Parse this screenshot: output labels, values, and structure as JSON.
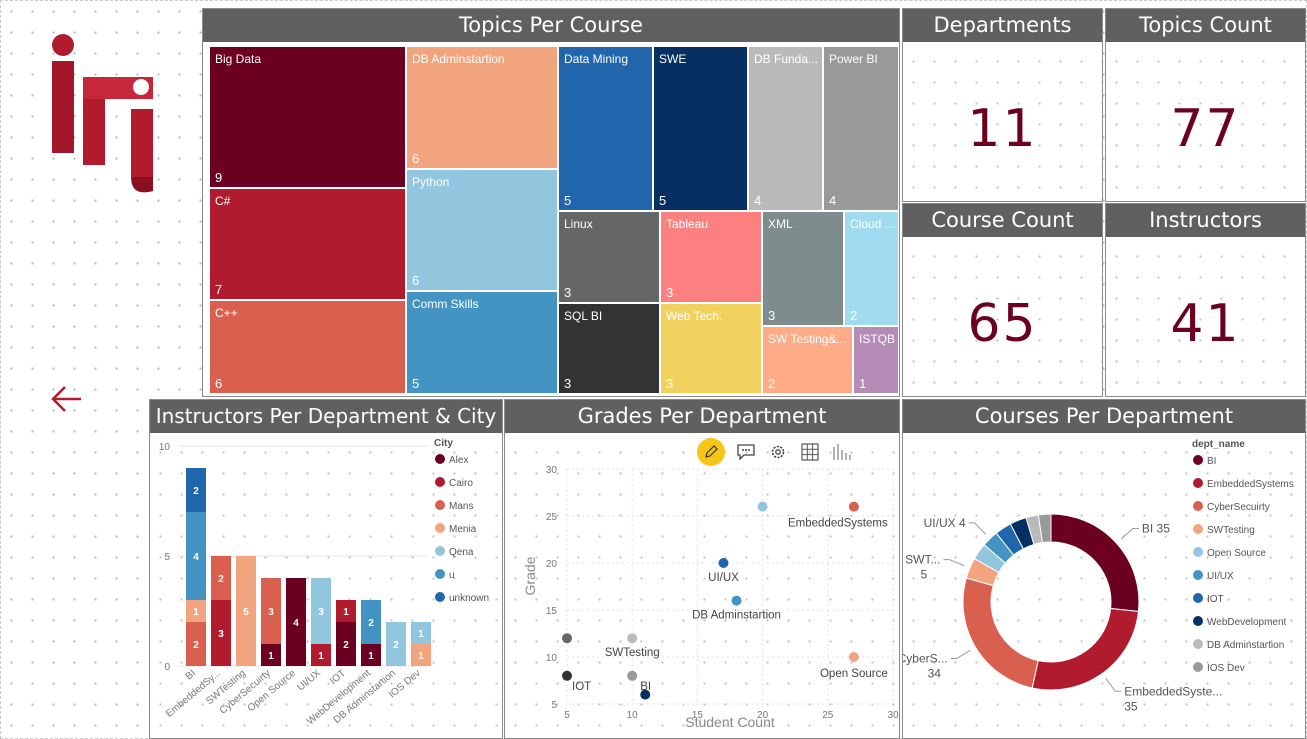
{
  "logo": {
    "text": "iti",
    "color": "#b01c2e"
  },
  "nav": {
    "back_icon": "arrow-left-icon",
    "color": "#b01c2e"
  },
  "panels": {
    "topics_per_course": {
      "title": "Topics Per Course"
    },
    "departments": {
      "title": "Departments",
      "value": "11"
    },
    "topics_count": {
      "title": "Topics Count",
      "value": "77"
    },
    "course_count": {
      "title": "Course Count",
      "value": "65"
    },
    "instructors": {
      "title": "Instructors",
      "value": "41"
    },
    "instructors_per_dept": {
      "title": "Instructors Per Department & City"
    },
    "grades_per_dept": {
      "title": "Grades Per Department"
    },
    "courses_per_dept": {
      "title": "Courses Per Department"
    }
  },
  "toolbar": {
    "icons": [
      "pencil-icon",
      "comment-icon",
      "gear-icon",
      "table-icon",
      "chart-bars-icon"
    ]
  },
  "chart_data": [
    {
      "type": "treemap",
      "title": "Topics Per Course",
      "items": [
        {
          "label": "Big Data",
          "value": "9",
          "color": "#6b0020"
        },
        {
          "label": "C#",
          "value": "7",
          "color": "#b01c2e"
        },
        {
          "label": "C++",
          "value": "6",
          "color": "#d9604e"
        },
        {
          "label": "DB Adminstartion",
          "value": "6",
          "color": "#f2a47e"
        },
        {
          "label": "Python",
          "value": "6",
          "color": "#92c5de"
        },
        {
          "label": "Comm Skills",
          "value": "5",
          "color": "#4393c3"
        },
        {
          "label": "Data Mining",
          "value": "5",
          "color": "#2166ac"
        },
        {
          "label": "SWE",
          "value": "5",
          "color": "#053061"
        },
        {
          "label": "DB Funda...",
          "value": "4",
          "color": "#bababa"
        },
        {
          "label": "Power BI",
          "value": "4",
          "color": "#999999"
        },
        {
          "label": "Linux",
          "value": "3",
          "color": "#666666"
        },
        {
          "label": "SQL BI",
          "value": "3",
          "color": "#333333"
        },
        {
          "label": "Tableau",
          "value": "3",
          "color": "#fd8080"
        },
        {
          "label": "Web Tech.",
          "value": "3",
          "color": "#f2d25e"
        },
        {
          "label": "XML",
          "value": "3",
          "color": "#7f8c8d"
        },
        {
          "label": "Cloud ...",
          "value": "2",
          "color": "#a0dbf0"
        },
        {
          "label": "SW Testing&...",
          "value": "2",
          "color": "#ffab85"
        },
        {
          "label": "ISTQB",
          "value": "1",
          "color": "#b58cb5"
        }
      ]
    },
    {
      "type": "bar",
      "stacked": true,
      "title": "Instructors Per Department & City",
      "categories": [
        "BI",
        "EmbeddedSy...",
        "SWTesting",
        "CyberSecuirty",
        "Open Source",
        "UI/UX",
        "IOT",
        "WebDevelopment",
        "DB Adminstartion",
        "IOS Dev"
      ],
      "ylim": [
        0,
        10
      ],
      "yticks": [
        "0",
        "5",
        "10"
      ],
      "legend_title": "City",
      "series": [
        {
          "name": "Alex",
          "color": "#6b0020",
          "values": [
            0,
            0,
            0,
            1,
            4,
            0,
            2,
            1,
            0,
            0
          ]
        },
        {
          "name": "Cairo",
          "color": "#b01c2e",
          "values": [
            0,
            3,
            0,
            0,
            0,
            1,
            1,
            0,
            0,
            0
          ]
        },
        {
          "name": "Mans",
          "color": "#d9604e",
          "values": [
            2,
            2,
            0,
            3,
            0,
            0,
            0,
            0,
            0,
            0
          ]
        },
        {
          "name": "Menia",
          "color": "#f2a47e",
          "values": [
            1,
            0,
            5,
            0,
            0,
            0,
            0,
            0,
            0,
            1
          ]
        },
        {
          "name": "Qena",
          "color": "#92c5de",
          "values": [
            0,
            0,
            0,
            0,
            0,
            3,
            0,
            0,
            2,
            1
          ]
        },
        {
          "name": "u",
          "color": "#4393c3",
          "values": [
            4,
            0,
            0,
            0,
            0,
            0,
            0,
            2,
            0,
            0
          ]
        },
        {
          "name": "unknown",
          "color": "#2166ac",
          "values": [
            2,
            0,
            0,
            0,
            0,
            0,
            0,
            0,
            0,
            0
          ]
        }
      ]
    },
    {
      "type": "scatter",
      "title": "Grades Per Department",
      "xlabel": "Student Count",
      "ylabel": "Grade",
      "xlim": [
        5,
        30
      ],
      "ylim": [
        5,
        30
      ],
      "xticks": [
        "5",
        "10",
        "15",
        "20",
        "25",
        "30"
      ],
      "yticks": [
        "5",
        "10",
        "15",
        "20",
        "25",
        "30"
      ],
      "points": [
        {
          "x": 27,
          "y": 26,
          "label": "EmbeddedSystems",
          "color": "#d9604e"
        },
        {
          "x": 20,
          "y": 26,
          "label": "",
          "color": "#92c5de"
        },
        {
          "x": 17,
          "y": 20,
          "label": "UI/UX",
          "color": "#2166ac"
        },
        {
          "x": 18,
          "y": 16,
          "label": "DB Adminstartion",
          "color": "#4393c3"
        },
        {
          "x": 5,
          "y": 12,
          "label": "",
          "color": "#666666"
        },
        {
          "x": 10,
          "y": 12,
          "label": "SWTesting",
          "color": "#bababa"
        },
        {
          "x": 27,
          "y": 10,
          "label": "Open Source",
          "color": "#f2a47e"
        },
        {
          "x": 5,
          "y": 8,
          "label": "IOT",
          "color": "#333333"
        },
        {
          "x": 10,
          "y": 8,
          "label": "BI",
          "color": "#999999"
        },
        {
          "x": 11,
          "y": 6,
          "label": "",
          "color": "#053061"
        }
      ]
    },
    {
      "type": "pie",
      "donut": true,
      "title": "Courses Per Department",
      "legend_title": "dept_name",
      "slices": [
        {
          "name": "BI",
          "value": 35,
          "color": "#6b0020"
        },
        {
          "name": "EmbeddedSystems",
          "value": 35,
          "color": "#b01c2e"
        },
        {
          "name": "CyberSecuirty",
          "value": 34,
          "color": "#d9604e"
        },
        {
          "name": "SWTesting",
          "value": 5,
          "color": "#f2a47e"
        },
        {
          "name": "Open Source",
          "value": 4,
          "color": "#92c5de"
        },
        {
          "name": "UI/UX",
          "value": 4,
          "color": "#4393c3"
        },
        {
          "name": "IOT",
          "value": 4,
          "color": "#2166ac"
        },
        {
          "name": "WebDevelopment",
          "value": 4,
          "color": "#053061"
        },
        {
          "name": "DB Adminstartion",
          "value": 3,
          "color": "#bababa"
        },
        {
          "name": "IOS Dev",
          "value": 3,
          "color": "#999999"
        }
      ],
      "outside_labels": [
        {
          "text": "BI 35",
          "slice": 0
        },
        {
          "text": "EmbeddedSyste...",
          "value_text": "35",
          "slice": 1
        },
        {
          "text": "CyberS...",
          "value_text": "34",
          "slice": 2
        },
        {
          "text": "SWT...",
          "value_text": "5",
          "slice": 3
        },
        {
          "text": "UI/UX 4",
          "slice": 5
        }
      ]
    }
  ]
}
